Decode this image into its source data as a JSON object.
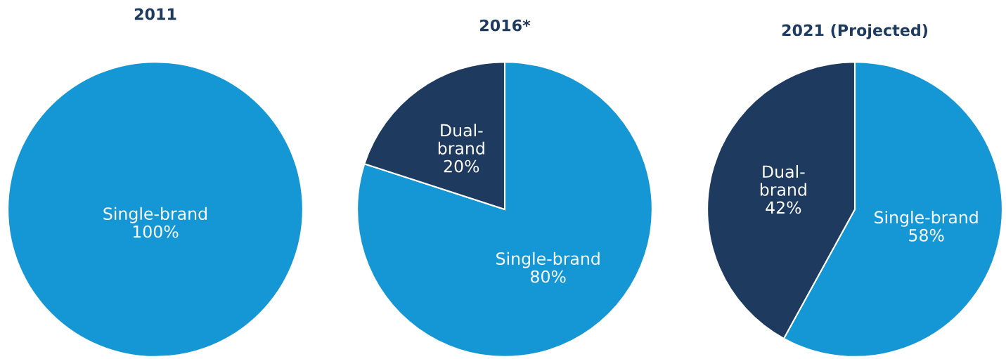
{
  "chart_data": [
    {
      "type": "pie",
      "title": "2011",
      "categories": [
        "Single-brand"
      ],
      "values": [
        100
      ],
      "colors": [
        "#1497d4"
      ],
      "value_labels": [
        "100%"
      ]
    },
    {
      "type": "pie",
      "title": "2016*",
      "categories": [
        "Single-brand",
        "Dual-brand"
      ],
      "values": [
        80,
        20
      ],
      "colors": [
        "#1497d4",
        "#1e3a5f"
      ],
      "value_labels": [
        "80%",
        "20%"
      ]
    },
    {
      "type": "pie",
      "title": "2021 (Projected)",
      "categories": [
        "Single-brand",
        "Dual-brand"
      ],
      "values": [
        58,
        42
      ],
      "colors": [
        "#1497d4",
        "#1e3a5f"
      ],
      "value_labels": [
        "58%",
        "42%"
      ]
    }
  ]
}
